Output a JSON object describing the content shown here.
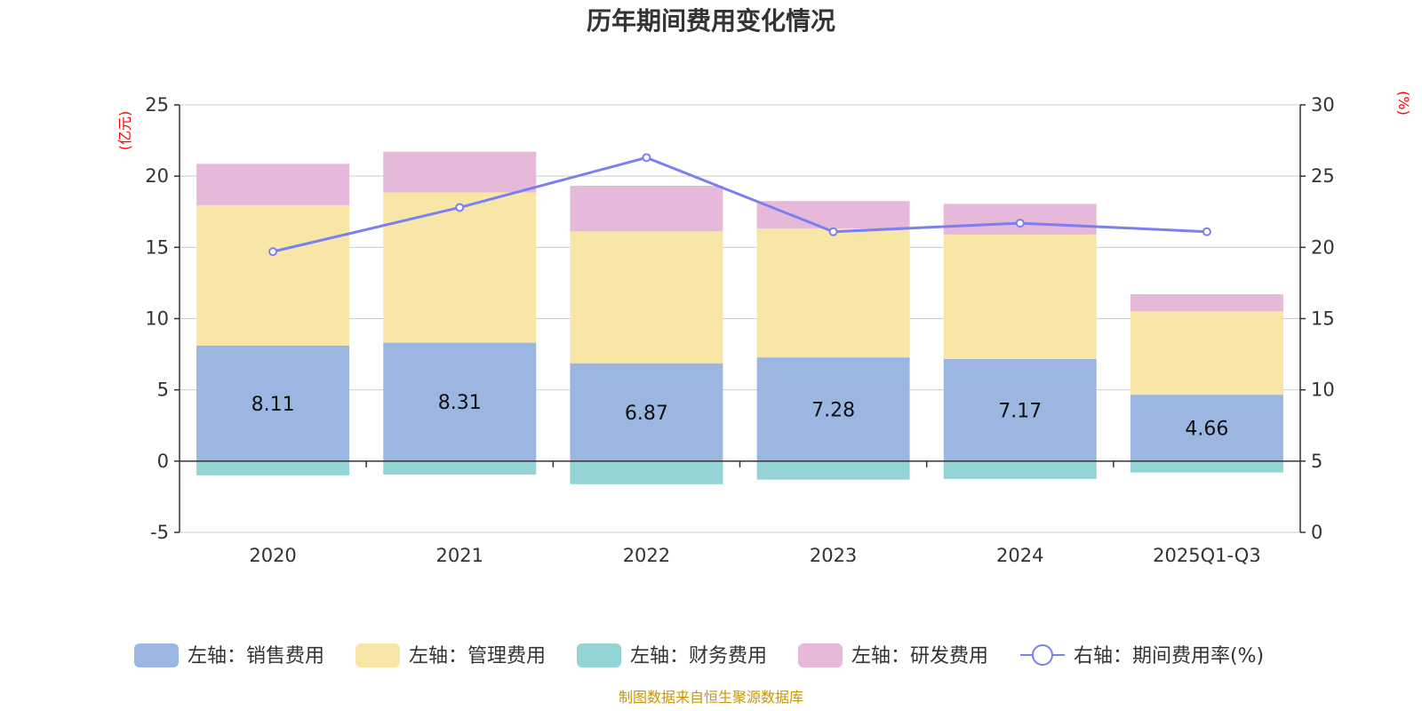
{
  "chart_data": {
    "type": "bar",
    "title": "历年期间费用变化情况",
    "categories": [
      "2020",
      "2021",
      "2022",
      "2023",
      "2024",
      "2025Q1-Q3"
    ],
    "left_axis": {
      "unit": "(亿元)",
      "min": -5,
      "max": 25,
      "ticks": [
        -5,
        0,
        5,
        10,
        15,
        20,
        25
      ],
      "tick_labels": [
        "-5",
        "0",
        "5",
        "10",
        "15",
        "20",
        "25"
      ]
    },
    "right_axis": {
      "unit": "(%)",
      "min": 0,
      "max": 30,
      "ticks": [
        0,
        5,
        10,
        15,
        20,
        25,
        30
      ],
      "tick_labels": [
        "0",
        "5",
        "10",
        "15",
        "20",
        "25",
        "30"
      ]
    },
    "series": [
      {
        "name": "左轴：销售费用",
        "key": "sales",
        "axis": "left",
        "kind": "bar",
        "color": "#9bb7e1",
        "values": [
          8.11,
          8.31,
          6.87,
          7.28,
          7.17,
          4.66
        ],
        "labels": [
          "8.11",
          "8.31",
          "6.87",
          "7.28",
          "7.17",
          "4.66"
        ]
      },
      {
        "name": "左轴：管理费用",
        "key": "admin",
        "axis": "left",
        "kind": "bar",
        "color": "#f7e6a6",
        "values": [
          9.85,
          10.55,
          9.25,
          9.05,
          8.73,
          5.85
        ]
      },
      {
        "name": "左轴：财务费用",
        "key": "finance",
        "axis": "left",
        "kind": "bar",
        "color": "#95d4d4",
        "values": [
          -1.0,
          -0.95,
          -1.62,
          -1.3,
          -1.25,
          -0.8
        ]
      },
      {
        "name": "左轴：研发费用",
        "key": "rnd",
        "axis": "left",
        "kind": "bar",
        "color": "#e6b8d9",
        "values": [
          2.9,
          2.85,
          3.2,
          1.92,
          2.15,
          1.2
        ]
      },
      {
        "name": "右轴：期间费用率(%)",
        "key": "rate",
        "axis": "right",
        "kind": "line",
        "color": "#7b7fef",
        "values": [
          19.7,
          22.8,
          26.3,
          21.1,
          21.7,
          21.1
        ]
      }
    ],
    "legend_position": "bottom",
    "grid": true
  },
  "source": "制图数据来自恒生聚源数据库"
}
